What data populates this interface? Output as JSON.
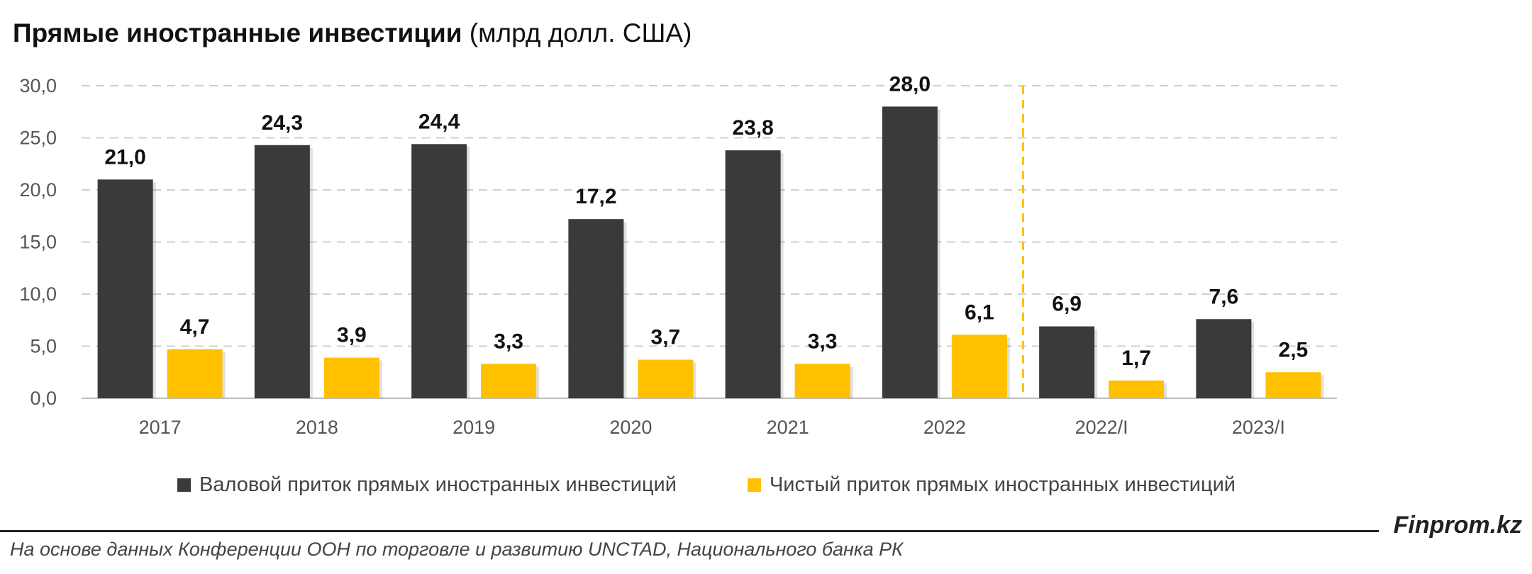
{
  "title": "Прямые иностранные инвестиции",
  "title_unit": "(млрд долл. США)",
  "legend": [
    {
      "label": "Валовой приток прямых иностранных инвестиций",
      "color": "#3a3a3a"
    },
    {
      "label": "Чистый приток прямых иностранных инвестиций",
      "color": "#ffc000"
    }
  ],
  "brand": "Finprom.kz",
  "source": "На основе данных Конференции ООН по торговле и развитию UNCTAD, Национального банка РК",
  "chart_data": {
    "type": "bar",
    "categories": [
      "2017",
      "2018",
      "2019",
      "2020",
      "2021",
      "2022",
      "2022/I",
      "2023/I"
    ],
    "series": [
      {
        "name": "Валовой приток прямых иностранных инвестиций",
        "color": "#3a3a3a",
        "values": [
          21.0,
          24.3,
          24.4,
          17.2,
          23.8,
          28.0,
          6.9,
          7.6
        ],
        "labels": [
          "21,0",
          "24,3",
          "24,4",
          "17,2",
          "23,8",
          "28,0",
          "6,9",
          "7,6"
        ]
      },
      {
        "name": "Чистый приток прямых иностранных инвестиций",
        "color": "#ffc000",
        "values": [
          4.7,
          3.9,
          3.3,
          3.7,
          3.3,
          6.1,
          1.7,
          2.5
        ],
        "labels": [
          "4,7",
          "3,9",
          "3,3",
          "3,7",
          "3,3",
          "6,1",
          "1,7",
          "2,5"
        ]
      }
    ],
    "ylim": [
      0,
      30
    ],
    "yticks": [
      "0,0",
      "5,0",
      "10,0",
      "15,0",
      "20,0",
      "25,0",
      "30,0"
    ],
    "grid": true,
    "separator_after_category": 5,
    "separator_color": "#ffc000",
    "legend_position": "bottom"
  }
}
